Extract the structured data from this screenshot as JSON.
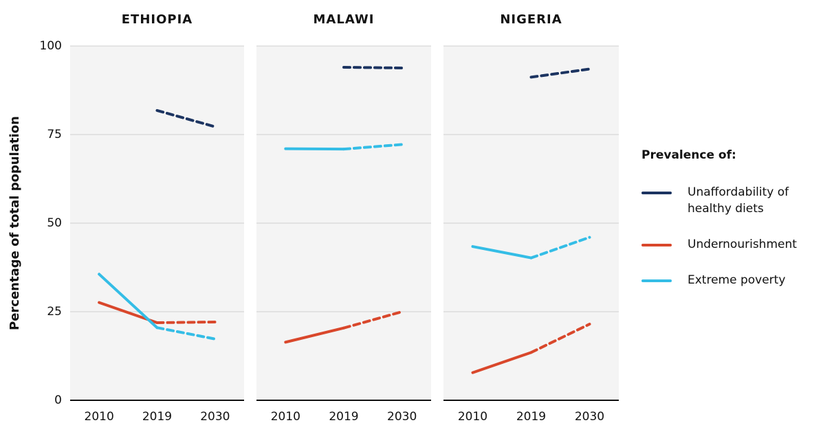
{
  "y_axis_label": "Percentage of total population",
  "legend_title": "Prevalence of:",
  "chart_data": [
    {
      "type": "line",
      "title": "ETHIOPIA",
      "categories": [
        "2010",
        "2019",
        "2030"
      ],
      "projected_from": "2019",
      "ylim": [
        0,
        100
      ],
      "yticks": [
        0,
        25,
        50,
        75,
        100
      ],
      "grid": true,
      "series": [
        {
          "name": "Unaffordability of healthy diets",
          "color": "#1c3461",
          "values": [
            null,
            81.8,
            77.2
          ]
        },
        {
          "name": "Undernourishment",
          "color": "#d9472b",
          "values": [
            27.6,
            21.9,
            22.1
          ]
        },
        {
          "name": "Extreme poverty",
          "color": "#34bde6",
          "values": [
            35.6,
            20.5,
            17.3
          ]
        }
      ]
    },
    {
      "type": "line",
      "title": "MALAWI",
      "categories": [
        "2010",
        "2019",
        "2030"
      ],
      "projected_from": "2019",
      "ylim": [
        0,
        100
      ],
      "yticks": [
        0,
        25,
        50,
        75,
        100
      ],
      "grid": true,
      "series": [
        {
          "name": "Unaffordability of healthy diets",
          "color": "#1c3461",
          "values": [
            null,
            94.0,
            93.8
          ]
        },
        {
          "name": "Undernourishment",
          "color": "#d9472b",
          "values": [
            16.4,
            20.4,
            25.0
          ]
        },
        {
          "name": "Extreme poverty",
          "color": "#34bde6",
          "values": [
            71.0,
            70.9,
            72.2
          ]
        }
      ]
    },
    {
      "type": "line",
      "title": "NIGERIA",
      "categories": [
        "2010",
        "2019",
        "2030"
      ],
      "projected_from": "2019",
      "ylim": [
        0,
        100
      ],
      "yticks": [
        0,
        25,
        50,
        75,
        100
      ],
      "grid": true,
      "series": [
        {
          "name": "Unaffordability of healthy diets",
          "color": "#1c3461",
          "values": [
            null,
            91.2,
            93.5
          ]
        },
        {
          "name": "Undernourishment",
          "color": "#d9472b",
          "values": [
            7.8,
            13.5,
            21.5
          ]
        },
        {
          "name": "Extreme poverty",
          "color": "#34bde6",
          "values": [
            43.4,
            40.2,
            46.0
          ]
        }
      ]
    }
  ]
}
